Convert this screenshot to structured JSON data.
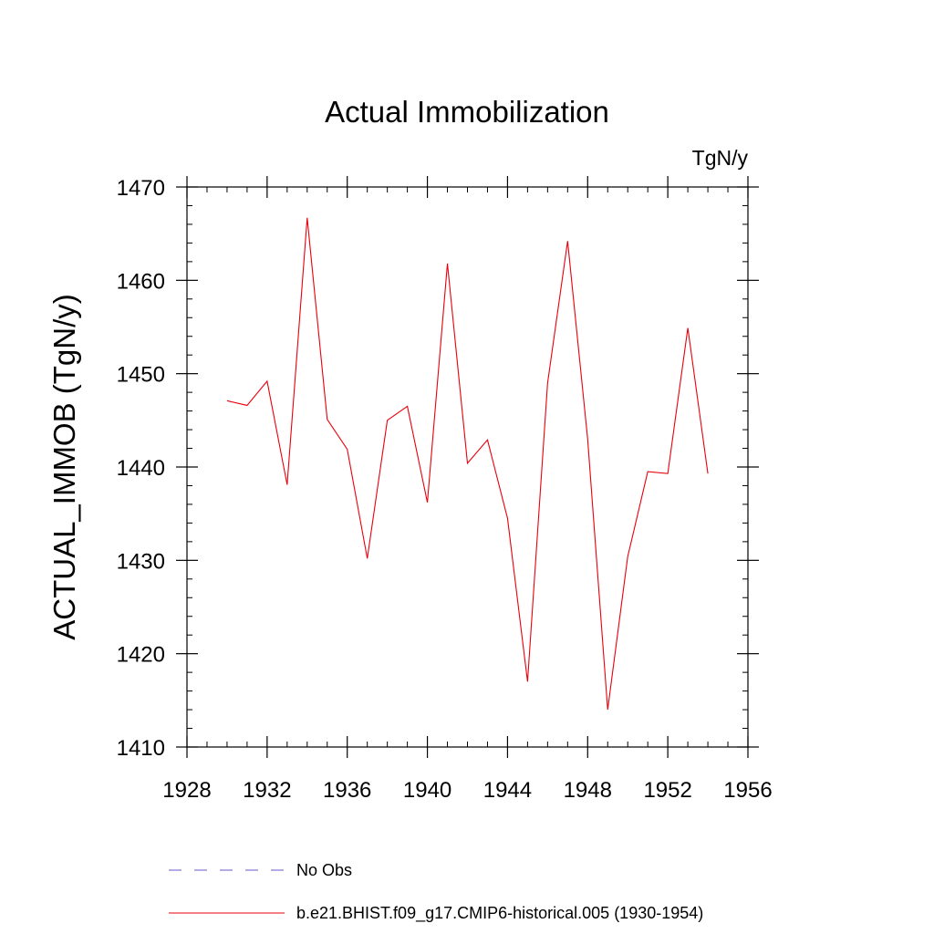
{
  "chart_data": {
    "type": "line",
    "title": "Actual Immobilization",
    "units_label": "TgN/y",
    "xlabel": "",
    "ylabel": "ACTUAL_IMMOB  (TgN/y)",
    "xlim": [
      1928,
      1956
    ],
    "ylim": [
      1410,
      1470
    ],
    "x_ticks": [
      1928,
      1932,
      1936,
      1940,
      1944,
      1948,
      1952,
      1956
    ],
    "y_ticks": [
      1410,
      1420,
      1430,
      1440,
      1450,
      1460,
      1470
    ],
    "x_minor_step": 1,
    "y_minor_step": 2,
    "grid": false,
    "legend_position": "bottom",
    "series": [
      {
        "name": "No Obs",
        "color": "#6a5acd",
        "dash": "dashed",
        "x": [],
        "values": []
      },
      {
        "name": "b.e21.BHIST.f09_g17.CMIP6-historical.005 (1930-1954)",
        "color": "#e8000b",
        "dash": "solid",
        "x": [
          1930,
          1931,
          1932,
          1933,
          1934,
          1935,
          1936,
          1937,
          1938,
          1939,
          1940,
          1941,
          1942,
          1943,
          1944,
          1945,
          1946,
          1947,
          1948,
          1949,
          1950,
          1951,
          1952,
          1953,
          1954
        ],
        "values": [
          1447.1,
          1446.6,
          1449.2,
          1438.1,
          1466.7,
          1445.1,
          1441.9,
          1430.2,
          1445.0,
          1446.5,
          1436.2,
          1461.8,
          1440.4,
          1442.9,
          1434.5,
          1417.0,
          1449.0,
          1464.2,
          1443.0,
          1414.0,
          1430.4,
          1439.5,
          1439.3,
          1454.9,
          1439.3
        ]
      }
    ]
  }
}
